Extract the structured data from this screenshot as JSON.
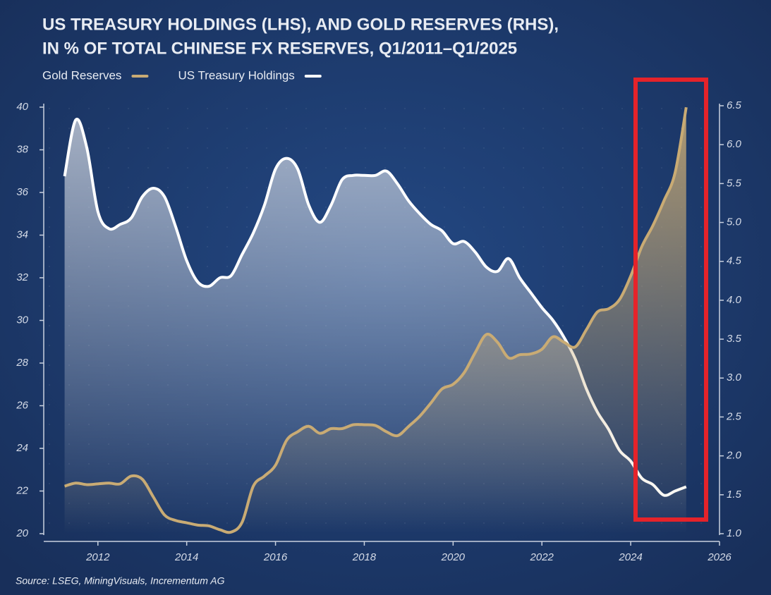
{
  "chart_data": {
    "type": "line",
    "title": [
      "US TREASURY HOLDINGS (LHS), AND GOLD RESERVES (RHS),",
      "IN % OF TOTAL CHINESE FX RESERVES, Q1/2011–Q1/2025"
    ],
    "source": "Source: LSEG, MiningVisuals, Incrementum AG",
    "x": [
      2011.25,
      2011.5,
      2011.75,
      2012,
      2012.25,
      2012.5,
      2012.75,
      2013,
      2013.25,
      2013.5,
      2013.75,
      2014,
      2014.25,
      2014.5,
      2014.75,
      2015,
      2015.25,
      2015.5,
      2015.75,
      2016,
      2016.25,
      2016.5,
      2016.75,
      2017,
      2017.25,
      2017.5,
      2017.75,
      2018,
      2018.25,
      2018.5,
      2018.75,
      2019,
      2019.25,
      2019.5,
      2019.75,
      2020,
      2020.25,
      2020.5,
      2020.75,
      2021,
      2021.25,
      2021.5,
      2021.75,
      2022,
      2022.25,
      2022.5,
      2022.75,
      2023,
      2023.25,
      2023.5,
      2023.75,
      2024,
      2024.25,
      2024.5,
      2024.75,
      2025,
      2025.25
    ],
    "series": [
      {
        "name": "Gold Reserves",
        "color": "#c9ab74",
        "axis": "y2",
        "values": [
          1.61,
          1.65,
          1.63,
          1.64,
          1.65,
          1.64,
          1.74,
          1.7,
          1.47,
          1.24,
          1.17,
          1.14,
          1.11,
          1.1,
          1.05,
          1.02,
          1.15,
          1.61,
          1.74,
          1.88,
          2.2,
          2.31,
          2.38,
          2.29,
          2.35,
          2.35,
          2.4,
          2.4,
          2.39,
          2.31,
          2.26,
          2.38,
          2.51,
          2.68,
          2.86,
          2.92,
          3.07,
          3.33,
          3.56,
          3.46,
          3.26,
          3.3,
          3.31,
          3.37,
          3.53,
          3.46,
          3.4,
          3.62,
          3.85,
          3.89,
          4.01,
          4.31,
          4.69,
          4.96,
          5.28,
          5.64,
          6.48
        ]
      },
      {
        "name": "US Treasury Holdings",
        "color": "#ffffff",
        "values": [
          36.76,
          39.4,
          38.1,
          35.1,
          34.3,
          34.5,
          34.8,
          35.8,
          36.2,
          35.8,
          34.4,
          32.8,
          31.8,
          31.6,
          32.0,
          32.1,
          33.1,
          34.1,
          35.4,
          37.1,
          37.6,
          37.1,
          35.4,
          34.6,
          35.4,
          36.6,
          36.8,
          36.8,
          36.8,
          37.0,
          36.4,
          35.6,
          35.0,
          34.5,
          34.2,
          33.6,
          33.7,
          33.2,
          32.5,
          32.3,
          32.9,
          32.0,
          31.3,
          30.6,
          30.0,
          29.2,
          28.2,
          26.8,
          25.7,
          24.9,
          23.9,
          23.4,
          22.6,
          22.3,
          21.8,
          22.0,
          22.2
        ]
      }
    ],
    "xlim": [
      2010.78,
      2026
    ],
    "xticks": [
      2012,
      2014,
      2016,
      2018,
      2020,
      2022,
      2024,
      2026
    ],
    "ylim": [
      20,
      40
    ],
    "yticks": [
      20,
      22,
      24,
      26,
      28,
      30,
      32,
      34,
      36,
      38,
      40
    ],
    "y2lim": [
      1,
      6.5
    ],
    "y2ticks": [
      {
        "value": 1,
        "label": "1.0"
      },
      1.5,
      {
        "value": 2,
        "label": "2.0"
      },
      2.5,
      {
        "value": 3,
        "label": "3.0"
      },
      3.5,
      {
        "value": 4,
        "label": "4.0"
      },
      4.5,
      {
        "value": 5,
        "label": "5.0"
      },
      5.5,
      {
        "value": 6,
        "label": "6.0"
      },
      6.5
    ],
    "legend": "top-left",
    "grid": false
  }
}
